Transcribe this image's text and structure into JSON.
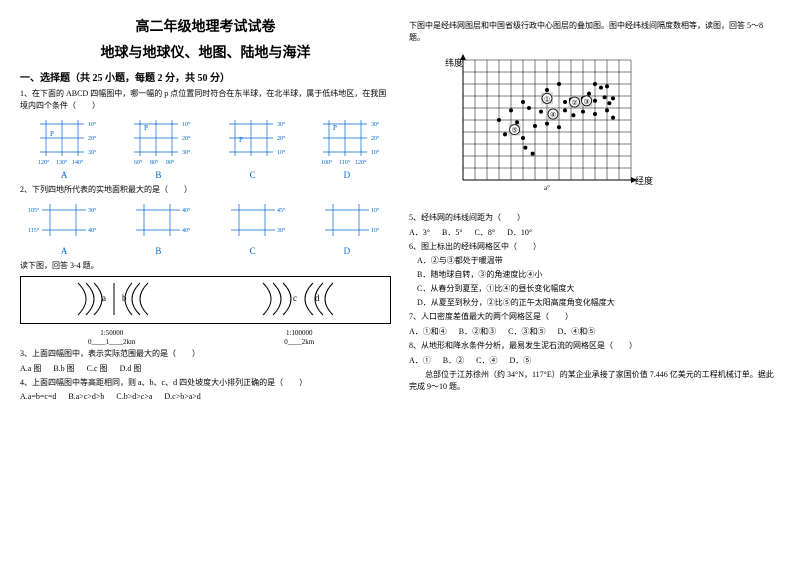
{
  "title_line1": "高二年级地理考试试卷",
  "title_line2": "地球与地球仪、地图、陆地与海洋",
  "section1_header": "一、选择题（共 25 小题，每题 2 分，共 50 分）",
  "q1": "1、在下面的 ABCD 四幅图中，哪一幅的 p 点位置同时符合在东半球，在北半球，属于低纬地区，在我国境内四个条件（　　）",
  "labels": [
    "A",
    "B",
    "C",
    "D"
  ],
  "q2": "2、下列四地所代表的实地面积最大的是（　　）",
  "q34_intro": "读下图，回答 3-4 题。",
  "q3": "3、上面四幅图中，表示实际范围最大的是（　　）",
  "q3_opts": [
    "A.a 图",
    "B.b 图",
    "C.c 图",
    "D.d 图"
  ],
  "q4": "4、上面四幅图中等高距相同，则 a、b、c、d 四处坡度大小排列正确的是（　　）",
  "q4_opts": [
    "A.a=b=c=d",
    "B.a>c>d>b",
    "C.b>d>c>a",
    "D.c>b>a>d"
  ],
  "col2_intro": "下图中是经纬网图层和中国省级行政中心图层的叠加图。图中经纬线间隔度数相等，读图，回答 5～8 题。",
  "axis_y": "纬度",
  "axis_x": "经度",
  "q5": "5、经纬网的纬线间距为（　　）",
  "q5_opts": [
    "A．3°",
    "B．5°",
    "C．8°",
    "D．10°"
  ],
  "q6": "6、图上标出的经纬网格区中（　　）",
  "q6_opts": [
    "A．②与③都处于暖温带",
    "B．随地球自转，③的角速度比④小",
    "C．从春分到夏至，①比④的昼长变化幅度大",
    "D．从夏至到秋分，②比⑤的正午太阳高度角变化幅度大"
  ],
  "q7": "7、人口密度差值最大的两个网格区是（　　）",
  "q7_opts": [
    "A．①和④",
    "B．②和③",
    "C．③和⑤",
    "D．④和⑤"
  ],
  "q8": "8、从地形和降水条件分析，最易发生泥石流的网格区是（　　）",
  "q8_opts": [
    "A．①",
    "B．②",
    "C．④",
    "D．⑤"
  ],
  "q910_intro": "　　总部位于江苏徐州（约 34°N，117°E）的某企业承接了家国价值 7.446 亿美元的工程机械订单。据此完成 9～10 题。",
  "grid1": {
    "top": [
      "10°",
      "20°",
      "30°"
    ],
    "bottom": [
      "120°",
      "130°",
      "140°"
    ]
  },
  "grid1b": {
    "top": [
      "10°",
      "20°",
      "30°"
    ],
    "bottom": [
      "60°",
      "80°",
      "90°"
    ]
  },
  "grid1c": {
    "top": [
      "30°",
      "20°",
      "10°"
    ],
    "bottom": [
      "100°",
      "110°",
      "120°"
    ]
  },
  "grid1d": {
    "top": [
      "30°",
      "20°",
      "10°"
    ],
    "bottom": [
      "100°",
      "110°",
      "120°"
    ]
  },
  "grid2a": {
    "left": [
      "105°",
      "115°"
    ],
    "right": [
      "30°",
      "40°"
    ]
  },
  "grid2b": {
    "left": [
      "105°",
      "115°"
    ],
    "right": [
      "40°",
      "40°"
    ]
  },
  "grid2c": {
    "left": [
      "45°",
      "30°"
    ],
    "right": [
      "10°",
      "10°"
    ]
  },
  "grid2d": {
    "left": [
      "10°",
      "10°"
    ],
    "right": [
      "10°",
      "10°"
    ]
  },
  "contours": [
    {
      "label": "a",
      "scale": "1:50000",
      "bar": "0____1____2km"
    },
    {
      "label": "b",
      "scale": "",
      "bar": ""
    },
    {
      "label": "c",
      "scale": "1:100000",
      "bar": "0____2km"
    },
    {
      "label": "d",
      "scale": "",
      "bar": ""
    }
  ],
  "scatter": {
    "bg": "#ffffff",
    "grid_color": "#000000",
    "cols": 14,
    "rows": 10,
    "cell": 12,
    "points": [
      [
        8,
        2
      ],
      [
        11,
        2
      ],
      [
        12,
        2.2
      ],
      [
        7,
        2.5
      ],
      [
        10.5,
        2.8
      ],
      [
        11.5,
        2.3
      ],
      [
        5,
        3.5
      ],
      [
        7,
        3.2
      ],
      [
        8.5,
        3.5
      ],
      [
        9,
        3.3
      ],
      [
        10,
        3.2
      ],
      [
        11,
        3.4
      ],
      [
        11.8,
        3.1
      ],
      [
        12.2,
        3.6
      ],
      [
        12.5,
        3.2
      ],
      [
        4,
        4.2
      ],
      [
        5.5,
        4
      ],
      [
        6.5,
        4.3
      ],
      [
        7.5,
        4.5
      ],
      [
        8.5,
        4.2
      ],
      [
        9.2,
        4.6
      ],
      [
        10,
        4.3
      ],
      [
        11,
        4.5
      ],
      [
        12,
        4.2
      ],
      [
        12.5,
        4.8
      ],
      [
        3,
        5
      ],
      [
        4.5,
        5.2
      ],
      [
        6,
        5.5
      ],
      [
        7,
        5.3
      ],
      [
        8,
        5.6
      ],
      [
        3.5,
        6.2
      ],
      [
        5,
        6.5
      ],
      [
        5.2,
        7.3
      ],
      [
        5.8,
        7.8
      ]
    ],
    "circles": [
      {
        "x": 7,
        "y": 3.2,
        "n": "①"
      },
      {
        "x": 9.3,
        "y": 3.5,
        "n": "②"
      },
      {
        "x": 10.3,
        "y": 3.4,
        "n": "③"
      },
      {
        "x": 7.5,
        "y": 4.5,
        "n": "④"
      },
      {
        "x": 4.3,
        "y": 5.8,
        "n": "⑤"
      }
    ]
  }
}
